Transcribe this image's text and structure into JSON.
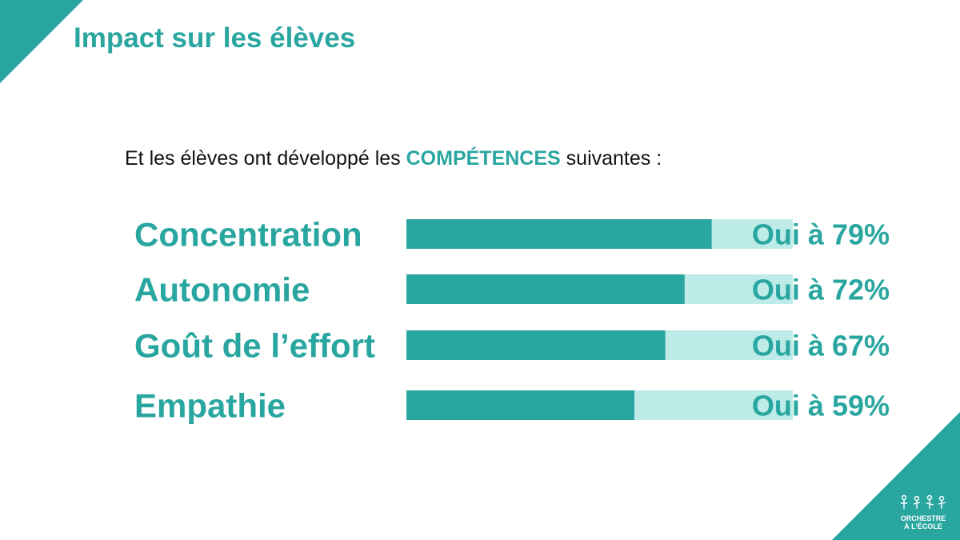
{
  "slide": {
    "title": "Impact sur les élèves",
    "subtitle_pre": "Et les élèves ont développé les ",
    "subtitle_emph": "COMPÉTENCES",
    "subtitle_post": " suivantes :"
  },
  "logo": {
    "line1": "ORCHESTRE",
    "line2": "À L'ÉCOLE"
  },
  "colors": {
    "accent": "#2aa6a0",
    "bar_fill": "#2aa6a0",
    "bar_track": "#bcebe8"
  },
  "chart_data": {
    "type": "bar",
    "orientation": "horizontal",
    "categories": [
      "Concentration",
      "Autonomie",
      "Goût de l’effort",
      "Empathie"
    ],
    "values": [
      79,
      72,
      67,
      59
    ],
    "value_labels": [
      "Oui à 79%",
      "Oui à 72%",
      "Oui à 67%",
      "Oui à 59%"
    ],
    "xlim": [
      0,
      100
    ],
    "unit": "%"
  }
}
